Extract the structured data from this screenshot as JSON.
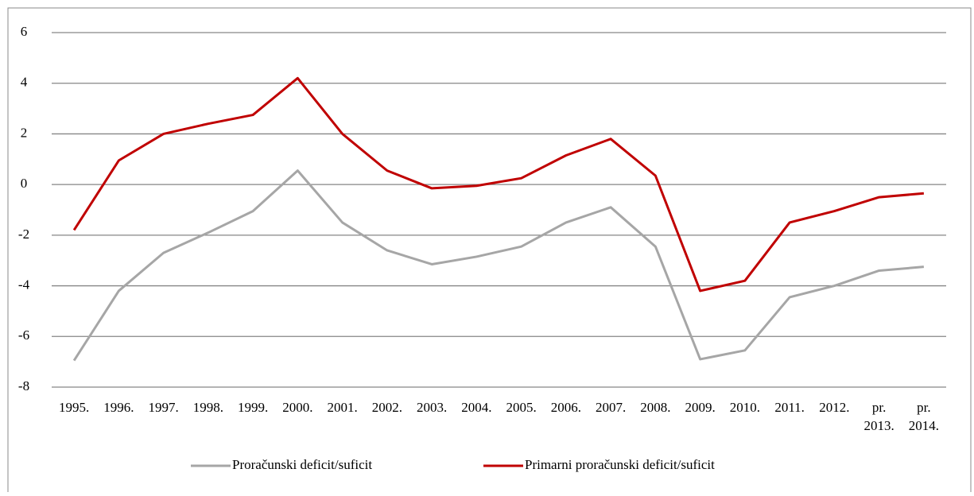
{
  "chart_data": {
    "type": "line",
    "categories": [
      "1995.",
      "1996.",
      "1997.",
      "1998.",
      "1999.",
      "2000.",
      "2001.",
      "2002.",
      "2003.",
      "2004.",
      "2005.",
      "2006.",
      "2007.",
      "2008.",
      "2009.",
      "2010.",
      "2011.",
      "2012.",
      "pr. 2013.",
      "pr. 2014."
    ],
    "series": [
      {
        "name": "Proračunski deficit/suficit",
        "color": "#a6a6a6",
        "values": [
          -6.95,
          -4.2,
          -2.7,
          -1.9,
          -1.05,
          0.55,
          -1.5,
          -2.6,
          -3.15,
          -2.85,
          -2.45,
          -1.5,
          -0.9,
          -2.45,
          -6.9,
          -6.55,
          -4.45,
          -4.0,
          -3.4,
          -3.25
        ]
      },
      {
        "name": "Primarni proračunski deficit/suficit",
        "color": "#c00000",
        "values": [
          -1.8,
          0.95,
          2.0,
          2.4,
          2.75,
          4.2,
          2.0,
          0.55,
          -0.15,
          -0.05,
          0.25,
          1.15,
          1.8,
          0.35,
          -4.2,
          -3.8,
          -1.5,
          -1.05,
          -0.5,
          -0.35
        ]
      }
    ],
    "ylim": [
      -8,
      6
    ],
    "yticks": [
      -8,
      -6,
      -4,
      -2,
      0,
      2,
      4,
      6
    ],
    "grid": true,
    "legend": "bottom"
  }
}
